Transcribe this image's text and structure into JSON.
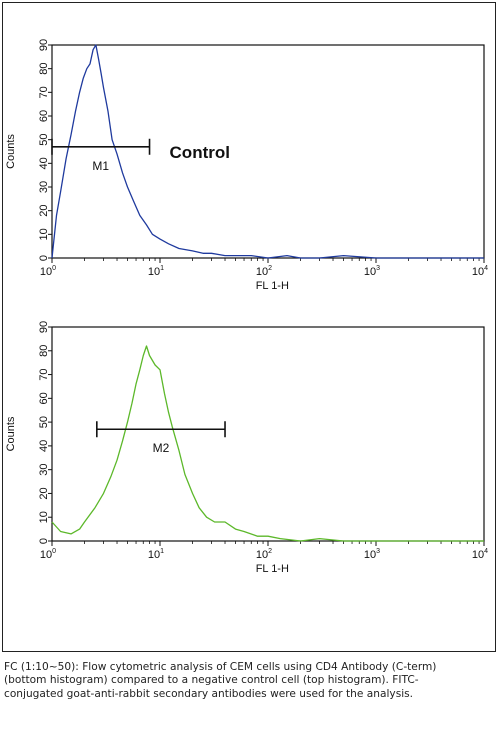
{
  "chart_data": [
    {
      "type": "line",
      "title": "",
      "xlabel": "FL 1-H",
      "ylabel": "Counts",
      "x_scale": "log",
      "xlim": [
        1,
        10000
      ],
      "ylim": [
        0,
        90
      ],
      "x_ticks": [
        {
          "base": "10",
          "exp": "0",
          "value": 1
        },
        {
          "base": "10",
          "exp": "1",
          "value": 10
        },
        {
          "base": "10",
          "exp": "2",
          "value": 100
        },
        {
          "base": "10",
          "exp": "3",
          "value": 1000
        },
        {
          "base": "10",
          "exp": "4",
          "value": 10000
        }
      ],
      "y_ticks": [
        "0",
        "10",
        "20",
        "30",
        "40",
        "50",
        "60",
        "70",
        "80",
        "90"
      ],
      "series": [
        {
          "color": "#1f3a9e",
          "x": [
            1.0,
            1.1,
            1.2,
            1.35,
            1.5,
            1.65,
            1.8,
            1.95,
            2.1,
            2.25,
            2.4,
            2.55,
            2.7,
            2.85,
            3.0,
            3.3,
            3.6,
            4.0,
            4.5,
            5.0,
            5.7,
            6.5,
            7.5,
            8.5,
            10,
            12,
            15,
            20,
            25,
            30,
            40,
            50,
            70,
            100,
            150,
            200,
            300,
            500,
            1000,
            3000,
            10000
          ],
          "y": [
            0,
            18,
            28,
            42,
            52,
            62,
            70,
            76,
            80,
            82,
            88,
            90,
            84,
            78,
            72,
            62,
            50,
            44,
            36,
            30,
            24,
            18,
            14,
            10,
            8,
            6,
            4,
            3,
            2,
            2,
            1,
            1,
            1,
            0,
            1,
            0,
            0,
            1,
            0,
            0,
            0
          ]
        }
      ],
      "marker": {
        "label": "M1",
        "range": [
          1,
          8
        ],
        "y": 47
      },
      "annotation": "Control"
    },
    {
      "type": "line",
      "title": "",
      "xlabel": "FL 1-H",
      "ylabel": "Counts",
      "x_scale": "log",
      "xlim": [
        1,
        10000
      ],
      "ylim": [
        0,
        90
      ],
      "x_ticks": [
        {
          "base": "10",
          "exp": "0",
          "value": 1
        },
        {
          "base": "10",
          "exp": "1",
          "value": 10
        },
        {
          "base": "10",
          "exp": "2",
          "value": 100
        },
        {
          "base": "10",
          "exp": "3",
          "value": 1000
        },
        {
          "base": "10",
          "exp": "4",
          "value": 10000
        }
      ],
      "y_ticks": [
        "0",
        "10",
        "20",
        "30",
        "40",
        "50",
        "60",
        "70",
        "80",
        "90"
      ],
      "series": [
        {
          "color": "#5cb82a",
          "x": [
            1.0,
            1.2,
            1.5,
            1.8,
            2.0,
            2.5,
            3.0,
            3.5,
            4.0,
            4.5,
            5.0,
            5.5,
            6.0,
            6.5,
            7.0,
            7.5,
            8.0,
            9.0,
            10,
            11,
            12,
            13,
            15,
            17,
            20,
            23,
            27,
            32,
            40,
            50,
            60,
            80,
            100,
            130,
            200,
            300,
            500,
            1000,
            3000,
            10000
          ],
          "y": [
            8,
            4,
            3,
            5,
            8,
            14,
            20,
            27,
            34,
            42,
            50,
            58,
            66,
            72,
            78,
            82,
            78,
            74,
            72,
            62,
            54,
            48,
            38,
            28,
            20,
            14,
            10,
            8,
            8,
            5,
            4,
            2,
            2,
            1,
            0,
            1,
            0,
            0,
            0,
            0
          ]
        }
      ],
      "marker": {
        "label": "M2",
        "range": [
          2.6,
          40
        ],
        "y": 47
      }
    }
  ],
  "caption": "FC (1:10~50): Flow cytometric analysis of CEM cells using CD4 Antibody (C-term) (bottom histogram) compared to a negative control cell (top histogram). FITC-conjugated goat-anti-rabbit secondary antibodies were used for the analysis."
}
